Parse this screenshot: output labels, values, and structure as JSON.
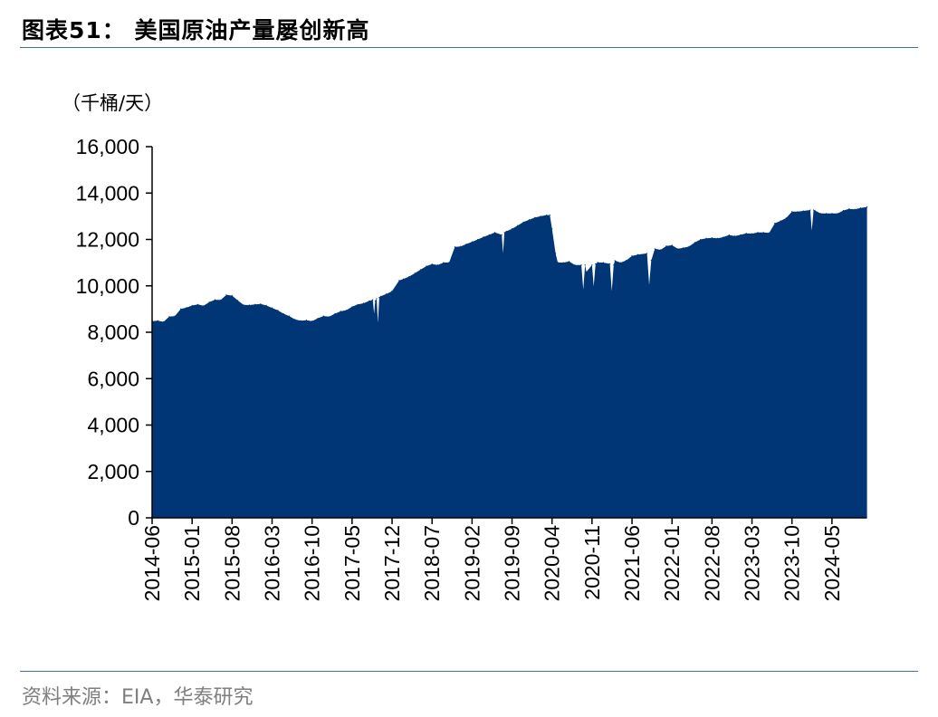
{
  "title": "图表51：  美国原油产量屡创新高",
  "source": "资料来源：EIA，华泰研究",
  "chart_data": {
    "type": "area",
    "title": "",
    "unit_label": "（千桶/天）",
    "xlabel": "",
    "ylabel": "",
    "ylim": [
      0,
      16000
    ],
    "yticks": [
      0,
      2000,
      4000,
      6000,
      8000,
      10000,
      12000,
      14000,
      16000
    ],
    "ytick_labels": [
      "0",
      "2,000",
      "4,000",
      "6,000",
      "8,000",
      "10,000",
      "12,000",
      "14,000",
      "16,000"
    ],
    "xtick_labels": [
      "2014-06",
      "2015-01",
      "2015-08",
      "2016-03",
      "2016-10",
      "2017-05",
      "2017-12",
      "2018-07",
      "2019-02",
      "2019-09",
      "2020-04",
      "2020-11",
      "2021-06",
      "2022-01",
      "2022-08",
      "2023-03",
      "2023-10",
      "2024-05"
    ],
    "grid": false,
    "fill_color": "#003576",
    "series": [
      {
        "x": [
          "2014-06-01",
          "2014-07-01",
          "2014-08-01",
          "2014-09-01",
          "2014-10-01",
          "2014-11-01",
          "2014-12-01",
          "2015-01-01",
          "2015-02-01",
          "2015-03-01",
          "2015-04-01",
          "2015-05-01",
          "2015-06-01",
          "2015-07-01",
          "2015-08-01",
          "2015-09-01",
          "2015-10-01",
          "2015-11-01",
          "2015-12-01",
          "2016-01-01",
          "2016-02-01",
          "2016-03-01",
          "2016-04-01",
          "2016-05-01",
          "2016-06-01",
          "2016-07-01",
          "2016-08-01",
          "2016-09-01",
          "2016-10-01",
          "2016-11-01",
          "2016-12-01",
          "2017-01-01",
          "2017-02-01",
          "2017-03-01",
          "2017-04-01",
          "2017-05-01",
          "2017-06-01",
          "2017-07-01",
          "2017-08-01",
          "2017-08-20",
          "2017-08-27",
          "2017-09-03",
          "2017-09-10",
          "2017-09-17",
          "2017-09-24",
          "2017-10-01",
          "2017-11-01",
          "2017-12-01",
          "2018-01-08",
          "2018-02-01",
          "2018-03-01",
          "2018-04-01",
          "2018-05-01",
          "2018-06-01",
          "2018-07-01",
          "2018-08-01",
          "2018-09-01",
          "2018-10-01",
          "2018-11-01",
          "2018-12-01",
          "2019-01-01",
          "2019-02-01",
          "2019-03-01",
          "2019-04-01",
          "2019-05-01",
          "2019-06-01",
          "2019-07-07",
          "2019-07-14",
          "2019-07-21",
          "2019-08-01",
          "2019-09-01",
          "2019-10-01",
          "2019-11-01",
          "2019-12-01",
          "2020-01-01",
          "2020-02-01",
          "2020-03-01",
          "2020-03-20",
          "2020-04-01",
          "2020-04-20",
          "2020-05-01",
          "2020-06-01",
          "2020-07-01",
          "2020-08-01",
          "2020-09-05",
          "2020-09-15",
          "2020-09-25",
          "2020-10-01",
          "2020-11-01",
          "2020-11-10",
          "2020-11-20",
          "2020-12-01",
          "2021-01-01",
          "2021-02-05",
          "2021-02-15",
          "2021-02-25",
          "2021-03-01",
          "2021-04-01",
          "2021-05-01",
          "2021-06-01",
          "2021-07-01",
          "2021-08-20",
          "2021-09-01",
          "2021-09-12",
          "2021-10-01",
          "2021-11-01",
          "2021-12-01",
          "2022-01-01",
          "2022-02-01",
          "2022-03-01",
          "2022-04-01",
          "2022-05-01",
          "2022-06-01",
          "2022-07-01",
          "2022-08-01",
          "2022-09-01",
          "2022-10-01",
          "2022-11-01",
          "2022-12-01",
          "2023-01-01",
          "2023-02-01",
          "2023-03-01",
          "2023-04-01",
          "2023-05-01",
          "2023-06-01",
          "2023-07-01",
          "2023-08-01",
          "2023-09-01",
          "2023-10-01",
          "2023-11-01",
          "2023-12-01",
          "2024-01-07",
          "2024-01-15",
          "2024-01-25",
          "2024-02-01",
          "2024-03-01",
          "2024-04-01",
          "2024-05-01",
          "2024-06-01",
          "2024-07-01",
          "2024-08-01",
          "2024-09-01",
          "2024-10-01",
          "2024-11-05"
        ],
        "values": [
          8480,
          8500,
          8450,
          8670,
          8700,
          9000,
          9060,
          9150,
          9200,
          9140,
          9300,
          9400,
          9390,
          9610,
          9580,
          9370,
          9180,
          9170,
          9200,
          9220,
          9150,
          9050,
          8950,
          8800,
          8700,
          8550,
          8500,
          8520,
          8480,
          8600,
          8700,
          8670,
          8800,
          8900,
          8950,
          9100,
          9200,
          9250,
          9350,
          9400,
          8800,
          9350,
          9450,
          8400,
          9500,
          9550,
          9650,
          9770,
          10230,
          10300,
          10400,
          10550,
          10700,
          10850,
          10940,
          10900,
          11000,
          11010,
          11680,
          11700,
          11800,
          11900,
          12000,
          12110,
          12200,
          12300,
          12200,
          11400,
          12300,
          12350,
          12460,
          12600,
          12750,
          12850,
          12950,
          13000,
          13050,
          13050,
          12460,
          11400,
          11010,
          11000,
          11050,
          10900,
          10900,
          9840,
          10900,
          10600,
          10900,
          9970,
          10950,
          11010,
          11000,
          10950,
          9770,
          10900,
          11090,
          11000,
          11100,
          11290,
          11350,
          11400,
          10040,
          11100,
          11600,
          11550,
          11720,
          11750,
          11600,
          11640,
          11700,
          11870,
          12000,
          12050,
          12070,
          12050,
          12100,
          12190,
          12150,
          12200,
          12260,
          12250,
          12300,
          12300,
          12280,
          12700,
          12800,
          12930,
          13200,
          13200,
          13230,
          13270,
          12380,
          13270,
          13250,
          13120,
          13120,
          13120,
          13120,
          13250,
          13320,
          13300,
          13360,
          13400
        ]
      }
    ]
  }
}
